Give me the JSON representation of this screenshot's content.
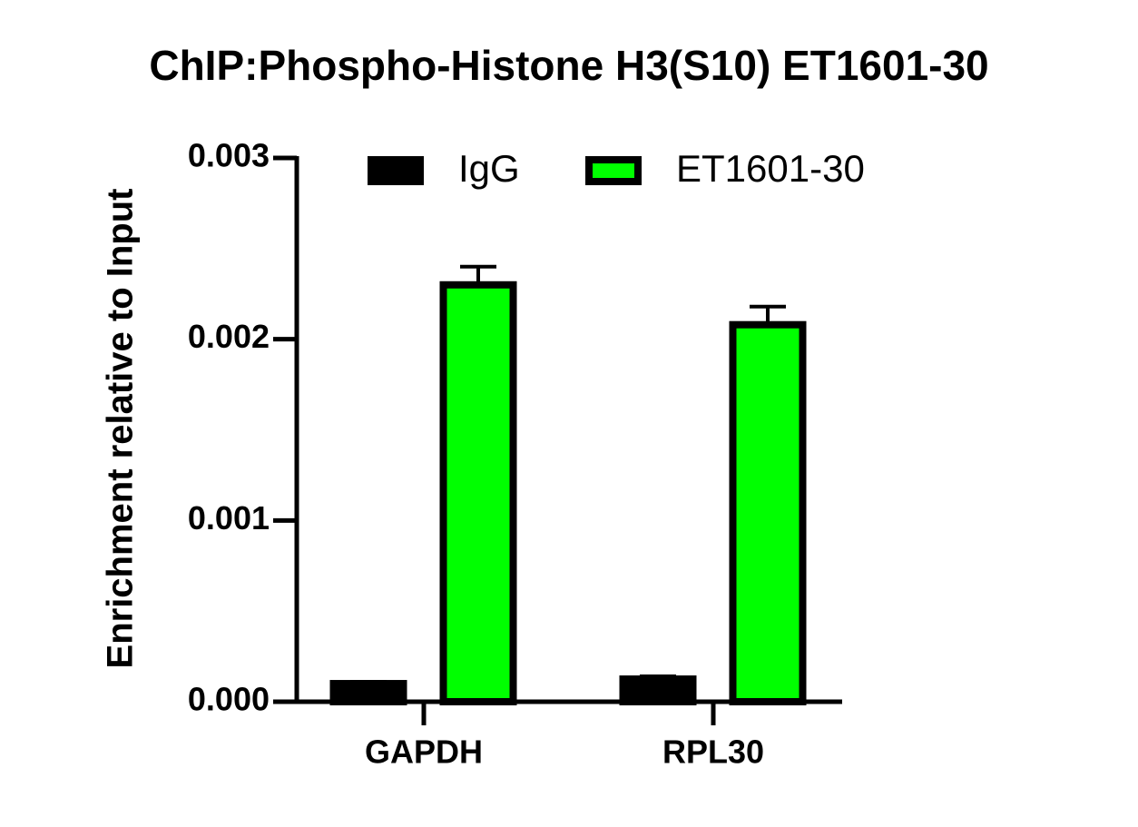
{
  "chart_data": {
    "type": "bar",
    "title": "ChIP:Phospho-Histone H3(S10) ET1601-30",
    "y_label": "Enrichment relative to Input",
    "categories": [
      "GAPDH",
      "RPL30"
    ],
    "series": [
      {
        "name": "IgG",
        "color": "#000000",
        "values": [
          0.0001,
          0.000125
        ],
        "errors": [
          1e-05,
          1.5e-05
        ]
      },
      {
        "name": "ET1601-30",
        "color": "#00ff00",
        "values": [
          0.0023,
          0.00208
        ],
        "errors": [
          0.0001,
          0.0001
        ]
      }
    ],
    "ylim": [
      0,
      0.003
    ],
    "yticks": [
      {
        "value": 0,
        "label": "0.000"
      },
      0.001,
      0.002,
      0.003
    ],
    "legend": "top"
  }
}
